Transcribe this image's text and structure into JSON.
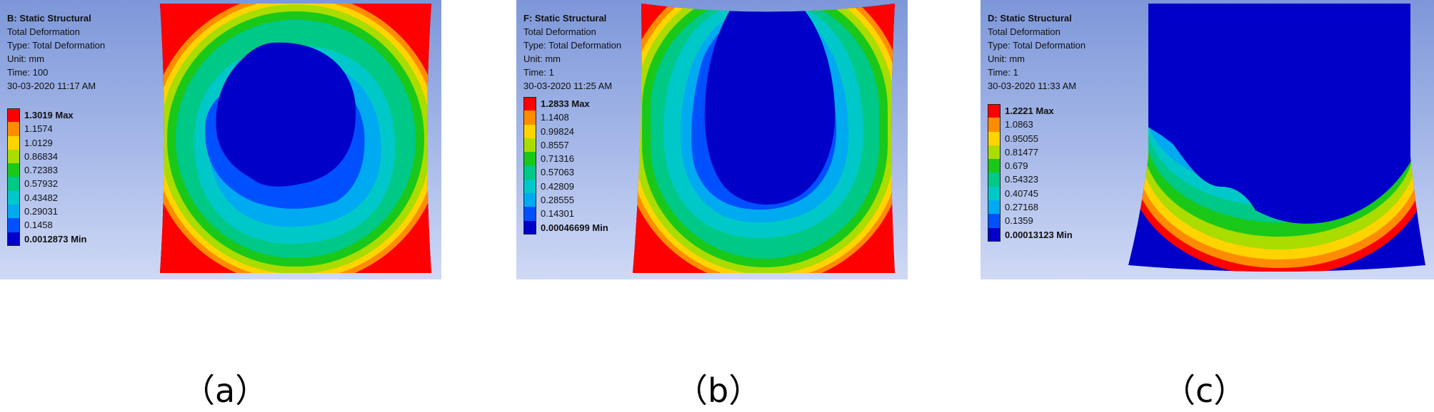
{
  "legend_colors": [
    "#ff0000",
    "#ff8c00",
    "#ffd400",
    "#aadc00",
    "#19c819",
    "#00c887",
    "#00c8c8",
    "#00aaf0",
    "#0050ff",
    "#0000c8"
  ],
  "panels": [
    {
      "title": "B: Static Structural",
      "lines": [
        "Total Deformation",
        "Type: Total Deformation",
        "Unit: mm",
        "Time: 100",
        "30-03-2020 11:17 AM"
      ],
      "max_label": "1.3019 Max",
      "values": [
        "1.1574",
        "1.0129",
        "0.86834",
        "0.72383",
        "0.57932",
        "0.43482",
        "0.29031",
        "0.1458"
      ],
      "min_label": "0.0012873 Min",
      "caption": "（a）"
    },
    {
      "title": "F: Static Structural",
      "lines": [
        "Total Deformation",
        "Type: Total Deformation",
        "Unit: mm",
        "Time: 1",
        "30-03-2020 11:25 AM"
      ],
      "max_label": "1.2833 Max",
      "values": [
        "1.1408",
        "0.99824",
        "0.8557",
        "0.71316",
        "0.57063",
        "0.42809",
        "0.28555",
        "0.14301"
      ],
      "min_label": "0.00046699 Min",
      "caption": "（b）"
    },
    {
      "title": "D: Static Structural",
      "lines": [
        "Total Deformation",
        "Type: Total Deformation",
        "Unit: mm",
        "Time: 1",
        "30-03-2020 11:33 AM"
      ],
      "max_label": "1.2221 Max",
      "values": [
        "1.0863",
        "0.95055",
        "0.81477",
        "0.679",
        "0.54323",
        "0.40745",
        "0.27168",
        "0.1359"
      ],
      "min_label": "0.00013123 Min",
      "caption": "（c）"
    }
  ]
}
